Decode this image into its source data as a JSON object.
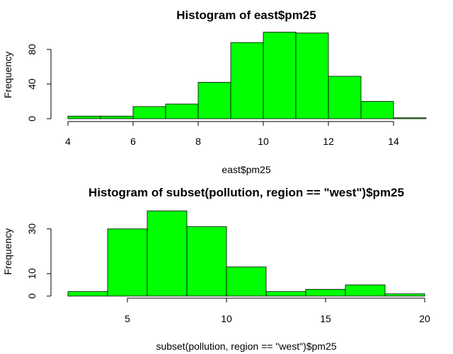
{
  "chart_data": [
    {
      "type": "bar",
      "title": "Histogram of east$pm25",
      "xlabel": "east$pm25",
      "ylabel": "Frequency",
      "bin_edges": [
        4,
        5,
        6,
        7,
        8,
        9,
        10,
        11,
        12,
        13,
        14,
        15
      ],
      "values": [
        3,
        3,
        14,
        17,
        42,
        88,
        100,
        99,
        49,
        20,
        1
      ],
      "x_ticks": [
        4,
        6,
        8,
        10,
        12,
        14
      ],
      "y_ticks": [
        0,
        40,
        80
      ],
      "bar_color": "#00ff00"
    },
    {
      "type": "bar",
      "title": "Histogram of subset(pollution, region == \"west\")$pm25",
      "xlabel": "subset(pollution, region == \"west\")$pm25",
      "ylabel": "Frequency",
      "bin_edges": [
        2,
        4,
        6,
        8,
        10,
        12,
        14,
        16,
        18,
        20
      ],
      "values": [
        2,
        30,
        38,
        31,
        13,
        2,
        3,
        5,
        1
      ],
      "x_ticks": [
        5,
        10,
        15,
        20
      ],
      "y_ticks": [
        0,
        10,
        30
      ],
      "bar_color": "#00ff00"
    }
  ]
}
